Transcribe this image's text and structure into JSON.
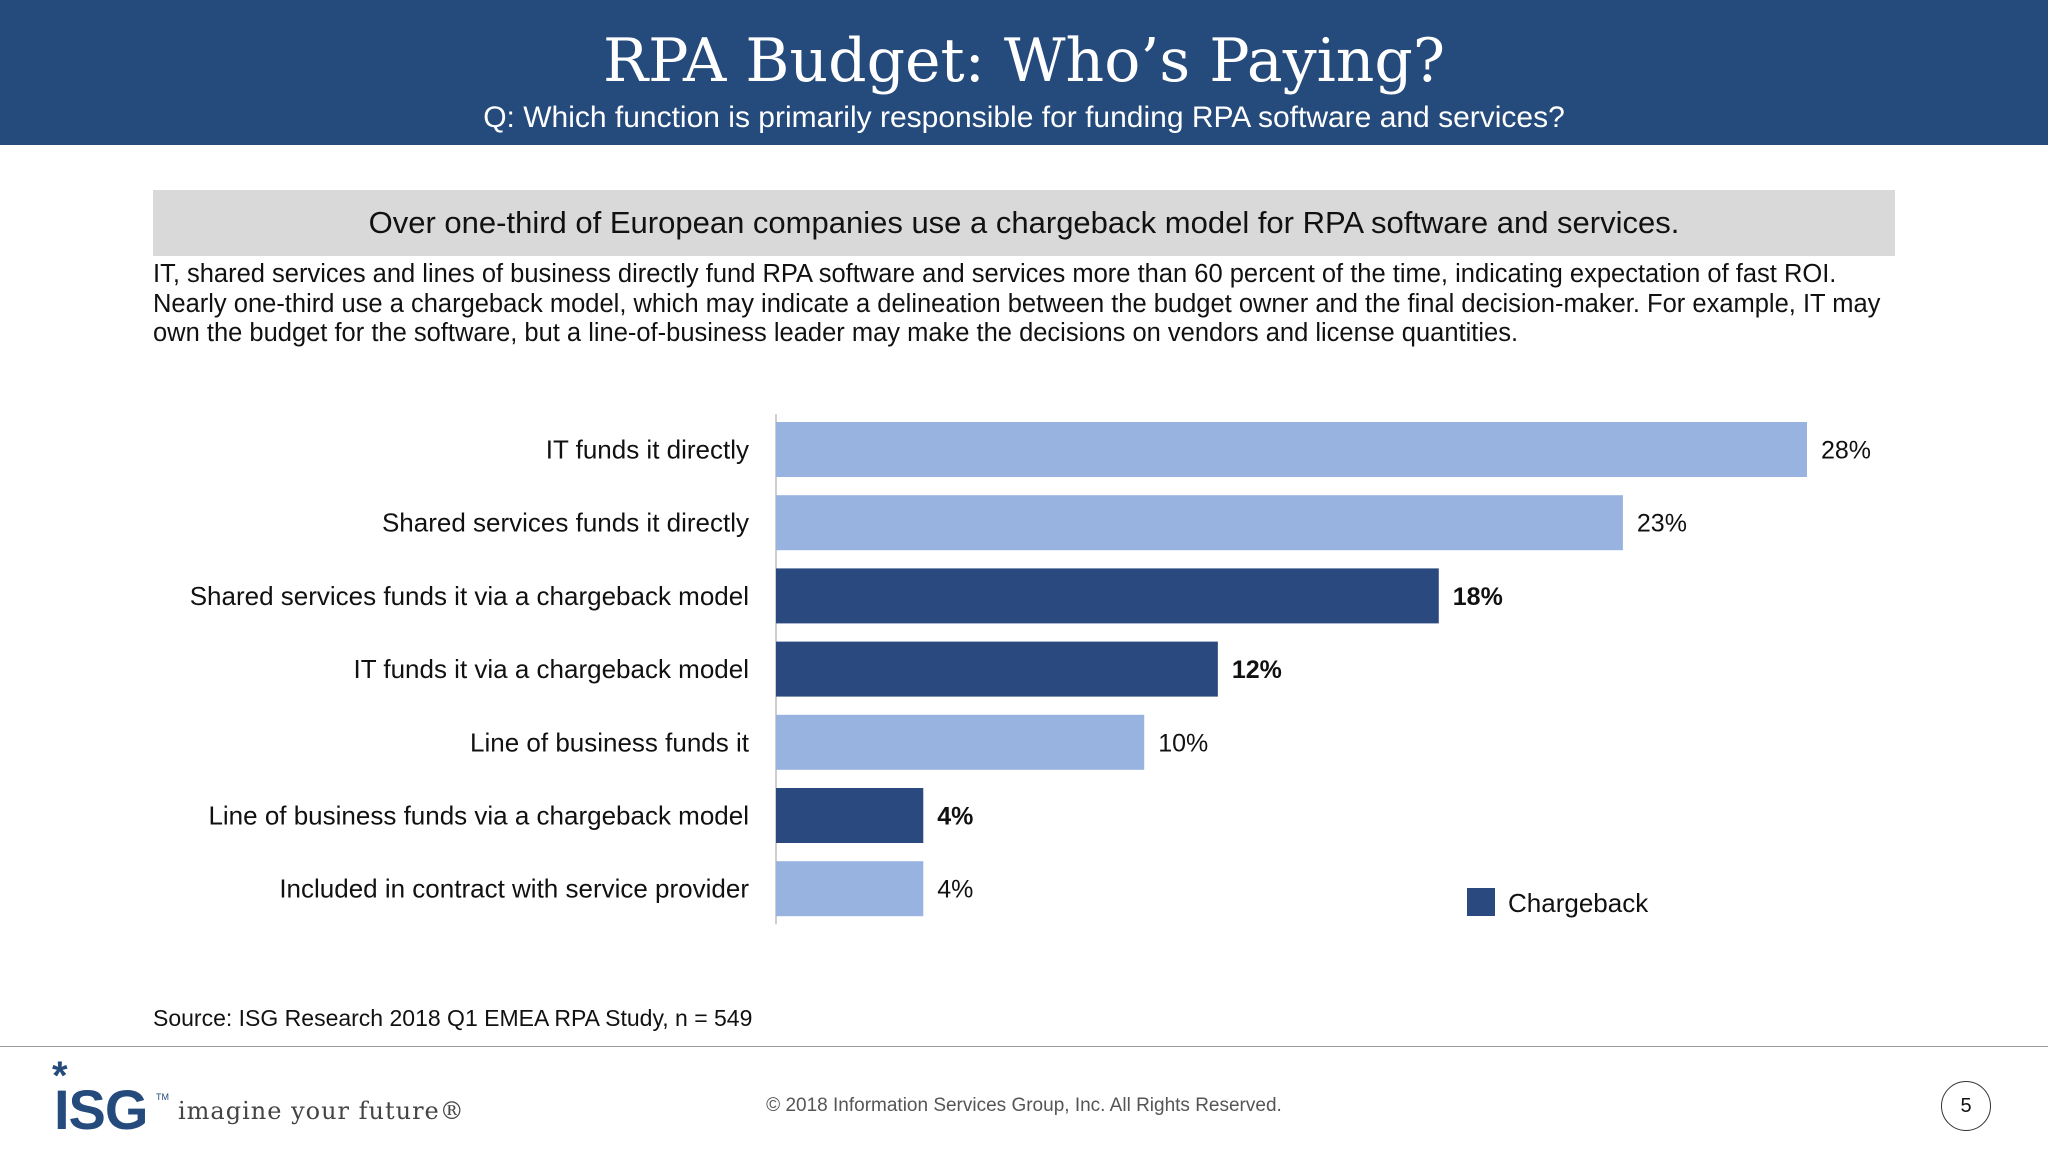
{
  "header": {
    "title": "RPA Budget: Who’s Paying?",
    "subtitle": "Q: Which function is primarily responsible for funding RPA software and services?"
  },
  "callout": "Over one-third of European companies use a chargeback model for RPA software and services.",
  "body_text": "IT, shared services and lines of business directly fund RPA software and services more than 60 percent of the time, indicating expectation of fast ROI. Nearly one-third use a chargeback model, which may indicate a delineation between the budget owner and the final decision-maker. For example, IT may own the budget for the software, but a line-of-business leader may make the decisions on vendors and license quantities.",
  "chart_data": {
    "type": "bar",
    "orientation": "horizontal",
    "categories": [
      "IT funds it directly",
      "Shared services funds it directly",
      "Shared services funds it via a chargeback model",
      "IT funds it via a chargeback model",
      "Line of business funds it",
      "Line of business funds via a chargeback model",
      "Included in contract with service provider"
    ],
    "values": [
      28,
      23,
      18,
      12,
      10,
      4,
      4
    ],
    "value_labels": [
      "28%",
      "23%",
      "18%",
      "12%",
      "10%",
      "4%",
      "4%"
    ],
    "chargeback": [
      false,
      false,
      true,
      true,
      false,
      true,
      false
    ],
    "xlim": [
      0,
      28
    ],
    "grid": false,
    "legend": {
      "label": "Chargeback",
      "position": "bottom-right"
    },
    "colors": {
      "default": "#98b3e0",
      "chargeback": "#2a4a7f"
    }
  },
  "source": "Source: ISG Research 2018 Q1 EMEA RPA Study, n = 549",
  "footer": {
    "logo": "ISG",
    "tagline": "imagine your future®",
    "copyright": "© 2018 Information Services Group, Inc.  All Rights Reserved.",
    "page_number": "5"
  }
}
